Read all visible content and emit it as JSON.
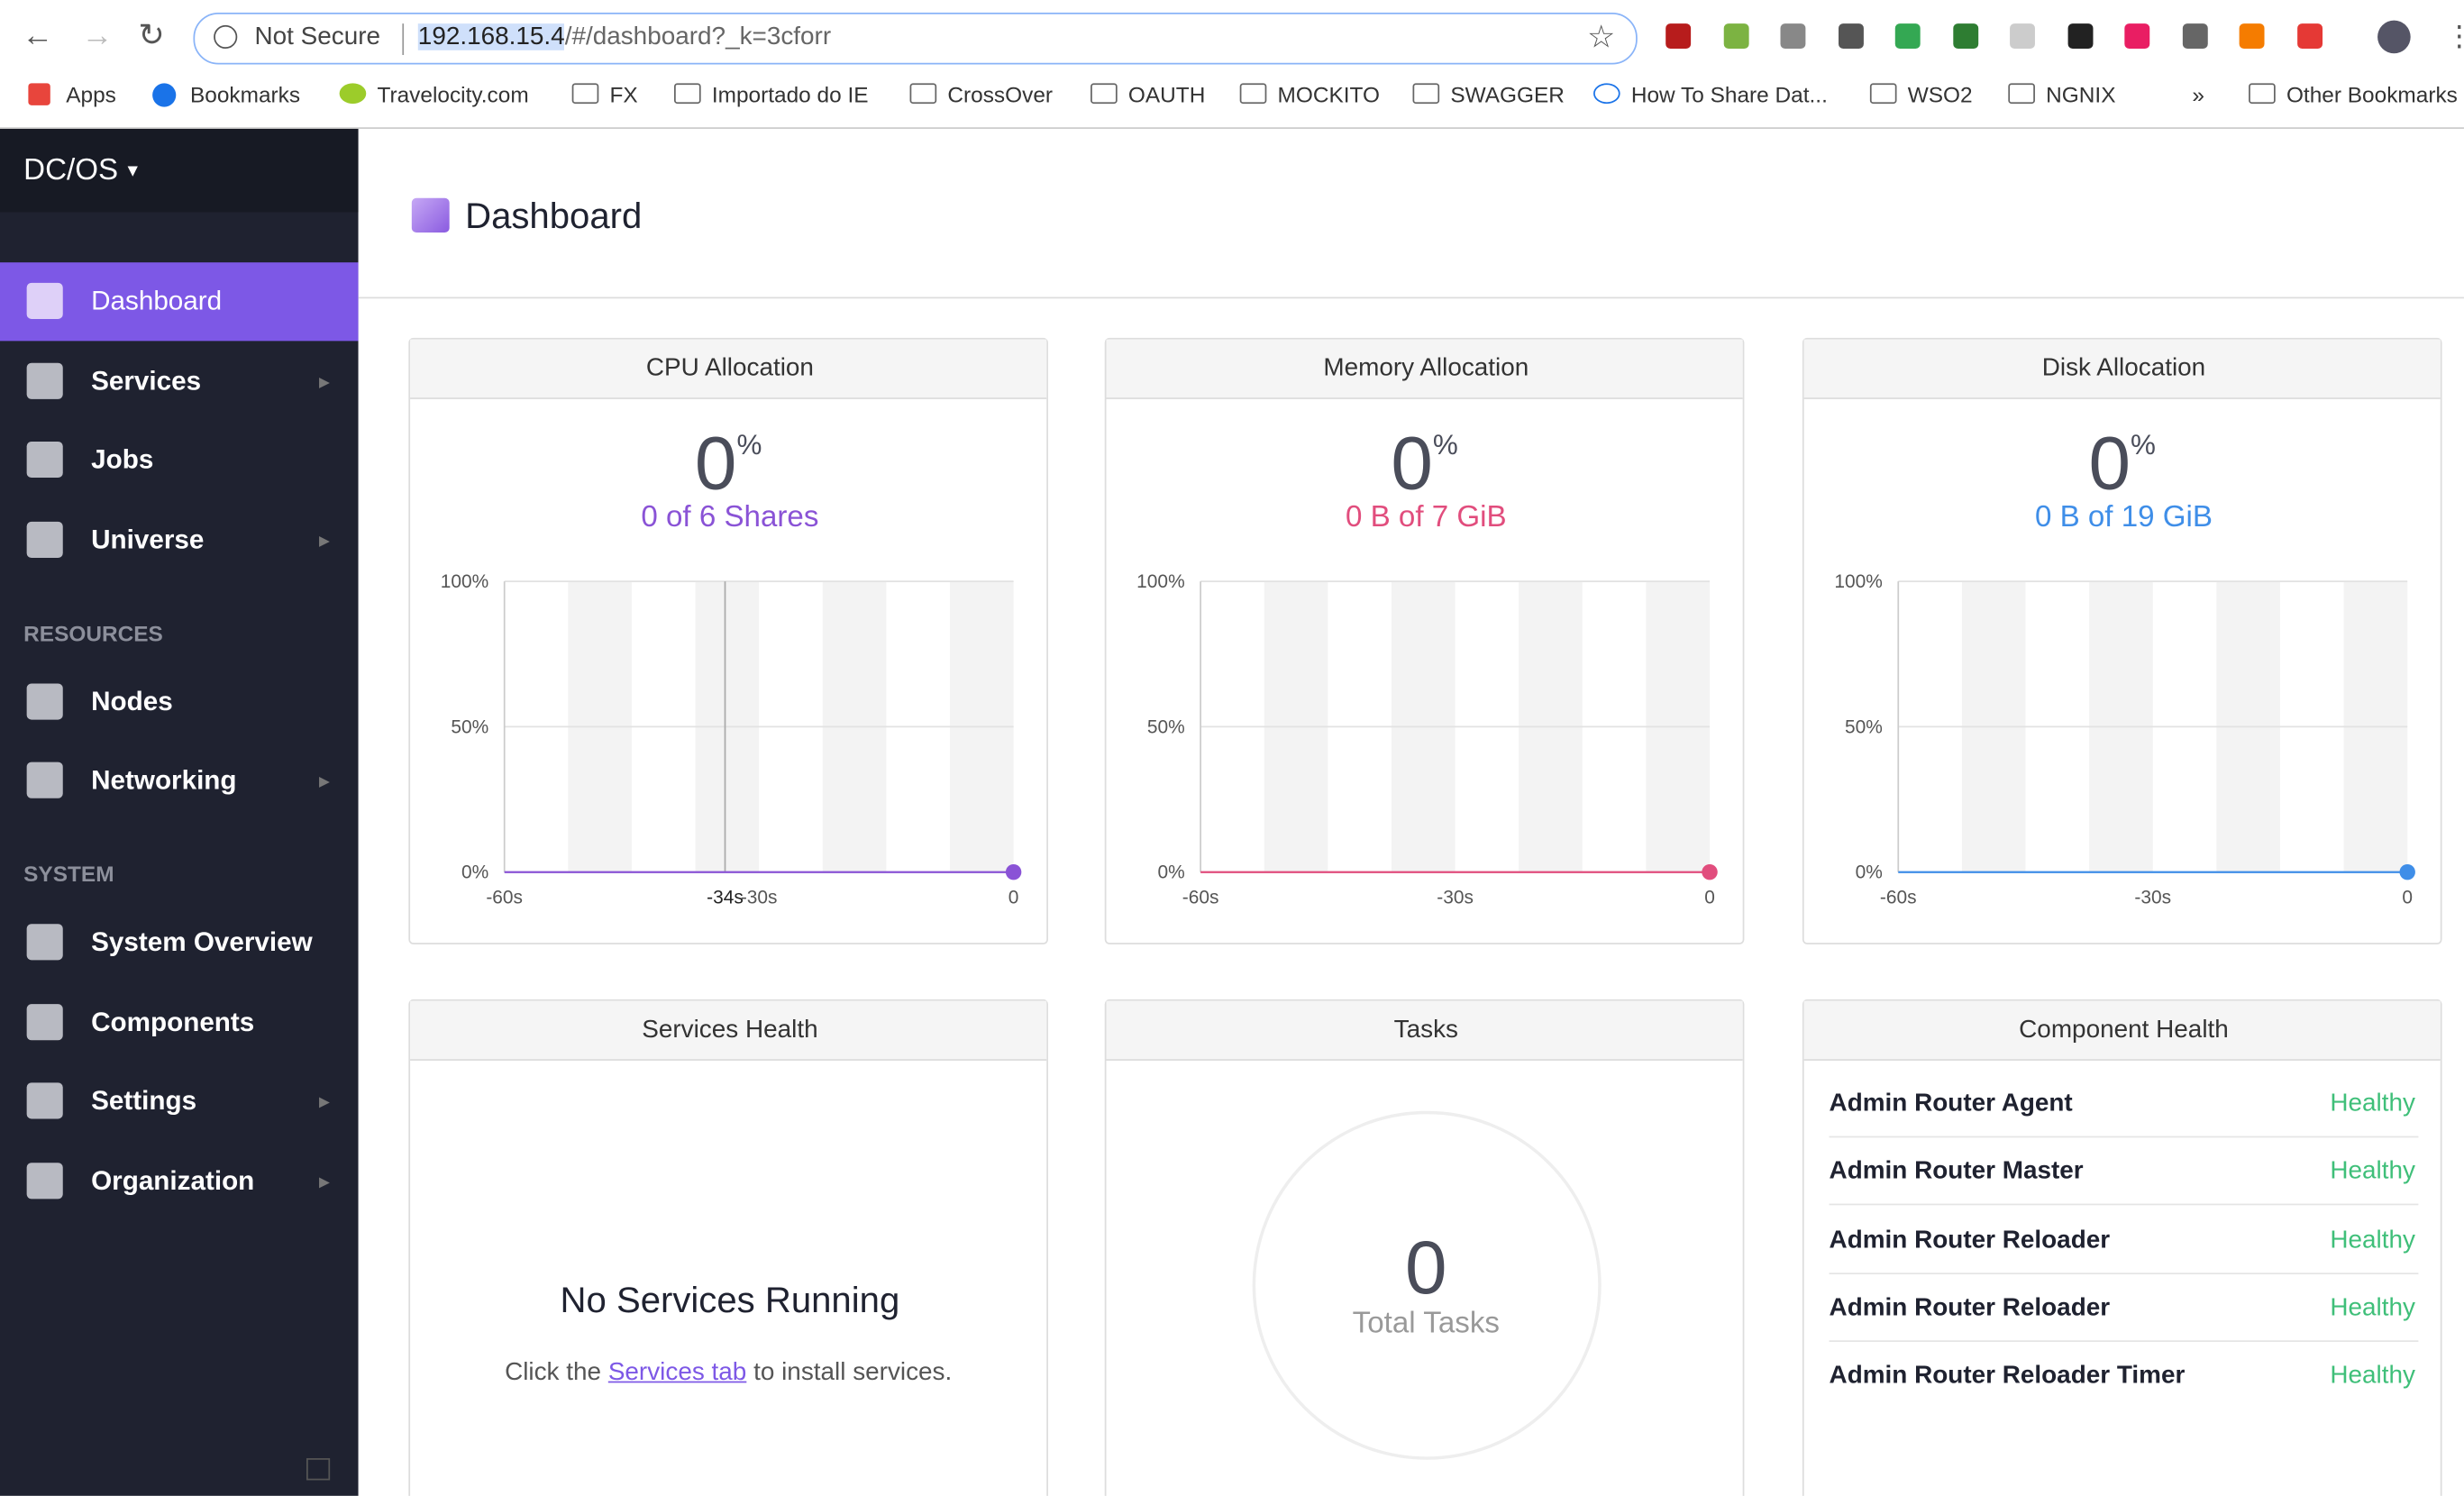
{
  "browser": {
    "not_secure": "Not Secure",
    "url_host": "192.168.15.4",
    "url_path": "/#/dashboard?_k=3cforr"
  },
  "bookmarks": [
    "Apps",
    "Bookmarks",
    "Travelocity.com",
    "FX",
    "Importado do IE",
    "CrossOver",
    "OAUTH",
    "MOCKITO",
    "SWAGGER",
    "How To Share Dat...",
    "WSO2",
    "NGNIX",
    "»",
    "Other Bookmarks"
  ],
  "sidebar": {
    "brand": "DC/OS",
    "groups": [
      {
        "items": [
          "Dashboard",
          "Services",
          "Jobs",
          "Universe"
        ]
      },
      {
        "heading": "RESOURCES",
        "items": [
          "Nodes",
          "Networking"
        ]
      },
      {
        "heading": "SYSTEM",
        "items": [
          "System Overview",
          "Components",
          "Settings",
          "Organization"
        ]
      }
    ]
  },
  "header": {
    "title": "Dashboard"
  },
  "allocation": [
    {
      "title": "CPU Allocation",
      "value": "0",
      "unit": "%",
      "detail": "0 of 6 Shares",
      "color": "#8a53d6",
      "yticks": [
        "100%",
        "50%",
        "0%"
      ],
      "xticks": [
        "-60s",
        "-30s",
        "0"
      ],
      "hover_label": "-34s"
    },
    {
      "title": "Memory Allocation",
      "value": "0",
      "unit": "%",
      "detail": "0 B of 7 GiB",
      "color": "#e14d7d",
      "yticks": [
        "100%",
        "50%",
        "0%"
      ],
      "xticks": [
        "-60s",
        "-30s",
        "0"
      ]
    },
    {
      "title": "Disk Allocation",
      "value": "0",
      "unit": "%",
      "detail": "0 B of 19 GiB",
      "color": "#3f8ee8",
      "yticks": [
        "100%",
        "50%",
        "0%"
      ],
      "xticks": [
        "-60s",
        "-30s",
        "0"
      ]
    }
  ],
  "services_health": {
    "title": "Services Health",
    "message": "No Services Running",
    "hint_before": "Click the",
    "link": "Services tab",
    "hint_after": "to install services."
  },
  "tasks": {
    "title": "Tasks",
    "count": "0",
    "label": "Total Tasks"
  },
  "component_health": {
    "title": "Component Health",
    "rows": [
      {
        "name": "Admin Router Agent",
        "status": "Healthy"
      },
      {
        "name": "Admin Router Master",
        "status": "Healthy"
      },
      {
        "name": "Admin Router Reloader",
        "status": "Healthy"
      },
      {
        "name": "Admin Router Reloader",
        "status": "Healthy"
      },
      {
        "name": "Admin Router Reloader Timer",
        "status": "Healthy"
      }
    ]
  }
}
